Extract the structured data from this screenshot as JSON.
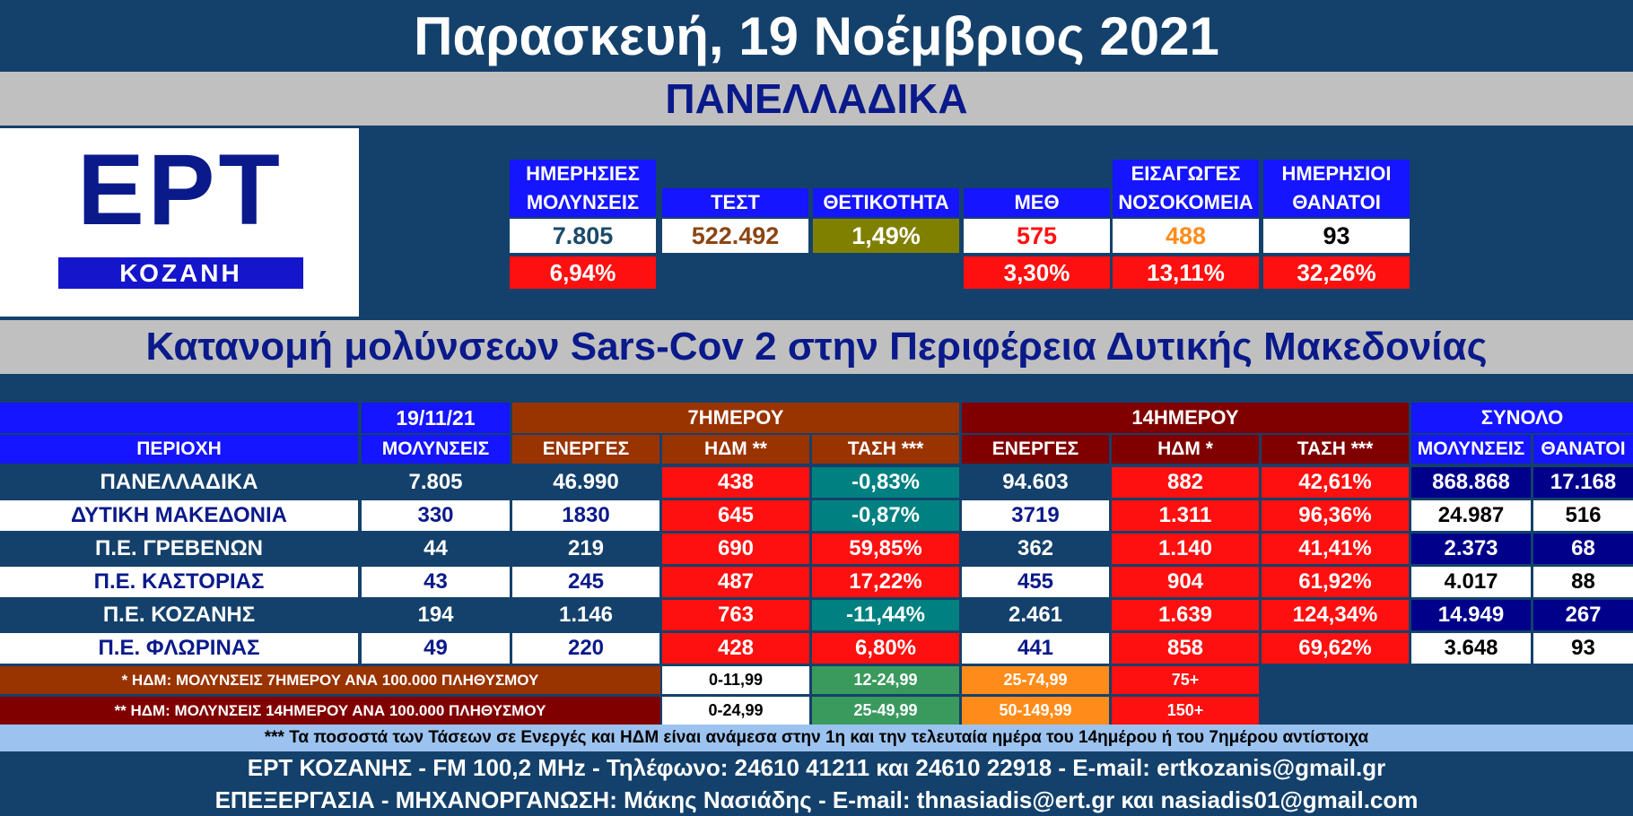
{
  "title": "Παρασκευή, 19 Νοέμβριος 2021",
  "section1": "ΠΑΝΕΛΛΑΔΙΚΑ",
  "logo": {
    "main": "EPT",
    "sub": "ΚΟΖΑΝΗ"
  },
  "summary": {
    "columns": [
      {
        "label": "ΗΜΕΡΗΣΙΕΣ ΜΟΛΥΝΣΕΙΣ",
        "value": "7.805",
        "value_color": "#1a4a6a",
        "value_bg": "#ffffff",
        "change": "6,94%"
      },
      {
        "label": "ΤΕΣΤ",
        "value": "522.492",
        "value_color": "#8b4513",
        "value_bg": "#ffffff",
        "change": ""
      },
      {
        "label": "ΘΕΤΙΚΟΤΗΤΑ",
        "value": "1,49%",
        "value_color": "#ffffff",
        "value_bg": "#808000",
        "change": ""
      },
      {
        "label": "ΜΕΘ",
        "value": "575",
        "value_color": "#ff1010",
        "value_bg": "#ffffff",
        "change": "3,30%"
      },
      {
        "label": "ΕΙΣΑΓΩΓΕΣ ΝΟΣΟΚΟΜΕΙΑ",
        "value": "488",
        "value_color": "#ff8c1a",
        "value_bg": "#ffffff",
        "change": "13,11%"
      },
      {
        "label": "ΗΜΕΡΗΣΙΟΙ ΘΑΝΑΤΟΙ",
        "value": "93",
        "value_color": "#000000",
        "value_bg": "#ffffff",
        "change": "32,26%"
      }
    ]
  },
  "section2": "Κατανομή μολύνσεων Sars-Cov 2 στην Περιφέρεια Δυτικής Μακεδονίας",
  "table": {
    "group_headers": {
      "date": "19/11/21",
      "week": "7ΗΜΕΡΟΥ",
      "fortnight": "14ΗΜΕΡΟΥ",
      "total": "ΣΥΝΟΛΟ"
    },
    "col_headers": [
      "ΠΕΡΙΟΧΗ",
      "ΜΟΛΥΝΣΕΙΣ",
      "ΕΝΕΡΓΕΣ",
      "ΗΔΜ **",
      "ΤΑΣΗ ***",
      "ΕΝΕΡΓΕΣ",
      "ΗΔΜ *",
      "ΤΑΣΗ ***",
      "ΜΟΛΥΝΣΕΙΣ",
      "ΘΑΝΑΤΟΙ"
    ],
    "rows": [
      {
        "region": "ΠΑΝΕΛΛΑΔΙΚΑ",
        "cases": "7.805",
        "active7": "46.990",
        "hdm7": "438",
        "trend7": "-0,83%",
        "active14": "94.603",
        "hdm14": "882",
        "trend14": "42,61%",
        "total_cases": "868.868",
        "deaths": "17.168"
      },
      {
        "region": "ΔΥΤΙΚΗ ΜΑΚΕΔΟΝΙΑ",
        "cases": "330",
        "active7": "1830",
        "hdm7": "645",
        "trend7": "-0,87%",
        "active14": "3719",
        "hdm14": "1.311",
        "trend14": "96,36%",
        "total_cases": "24.987",
        "deaths": "516"
      },
      {
        "region": "Π.Ε. ΓΡΕΒΕΝΩΝ",
        "cases": "44",
        "active7": "219",
        "hdm7": "690",
        "trend7": "59,85%",
        "active14": "362",
        "hdm14": "1.140",
        "trend14": "41,41%",
        "total_cases": "2.373",
        "deaths": "68"
      },
      {
        "region": "Π.Ε. ΚΑΣΤΟΡΙΑΣ",
        "cases": "43",
        "active7": "245",
        "hdm7": "487",
        "trend7": "17,22%",
        "active14": "455",
        "hdm14": "904",
        "trend14": "61,92%",
        "total_cases": "4.017",
        "deaths": "88"
      },
      {
        "region": "Π.Ε. ΚΟΖΑΝΗΣ",
        "cases": "194",
        "active7": "1.146",
        "hdm7": "763",
        "trend7": "-11,44%",
        "active14": "2.461",
        "hdm14": "1.639",
        "trend14": "124,34%",
        "total_cases": "14.949",
        "deaths": "267"
      },
      {
        "region": "Π.Ε. ΦΛΩΡΙΝΑΣ",
        "cases": "49",
        "active7": "220",
        "hdm7": "428",
        "trend7": "6,80%",
        "active14": "441",
        "hdm14": "858",
        "trend14": "69,62%",
        "total_cases": "3.648",
        "deaths": "93"
      }
    ],
    "colors": {
      "orange": "#993300",
      "maroon": "#800000",
      "red": "#ff1010",
      "teal": "#008080",
      "dark": "#14416b",
      "blue": "#1515ff",
      "navy": "#00008b",
      "text_navy": "#0a1a8a"
    }
  },
  "legend": {
    "notes": [
      "* ΗΔΜ: ΜΟΛΥΝΣΕΙΣ 7ΗΜΕΡΟΥ ΑΝΑ 100.000 ΠΛΗΘΥΣΜΟΥ",
      "** ΗΔΜ: ΜΟΛΥΝΣΕΙΣ 14ΗΜΕΡΟΥ ΑΝΑ 100.000 ΠΛΗΘΥΣΜΟΥ"
    ],
    "ranges7": [
      "0-11,99",
      "12-24,99",
      "25-74,99",
      "75+"
    ],
    "ranges14": [
      "0-24,99",
      "25-49,99",
      "50-149,99",
      "150+"
    ],
    "range_colors": [
      "#ffffff",
      "#3a9a5e",
      "#ff8c1a",
      "#ff1010"
    ]
  },
  "footnote": "*** Τα ποσοστά των Τάσεων σε Ενεργές και ΗΔΜ είναι ανάμεσα στην 1η και την τελευταία ημέρα του 14ημέρου ή του 7ημέρου αντίστοιχα",
  "contact1": "ΕΡΤ ΚΟΖΑΝΗΣ - FM 100,2 MHz - Τηλέφωνο:  24610 41211 και 24610 22918 - E-mail: ertkozanis@gmail.gr",
  "contact2": "ΕΠΕΞΕΡΓΑΣΙΑ  -  ΜΗΧΑΝΟΡΓΑΝΩΣΗ: Μάκης Νασιάδης   -   E-mail: thnasiadis@ert.gr και nasiadis01@gmail.com"
}
